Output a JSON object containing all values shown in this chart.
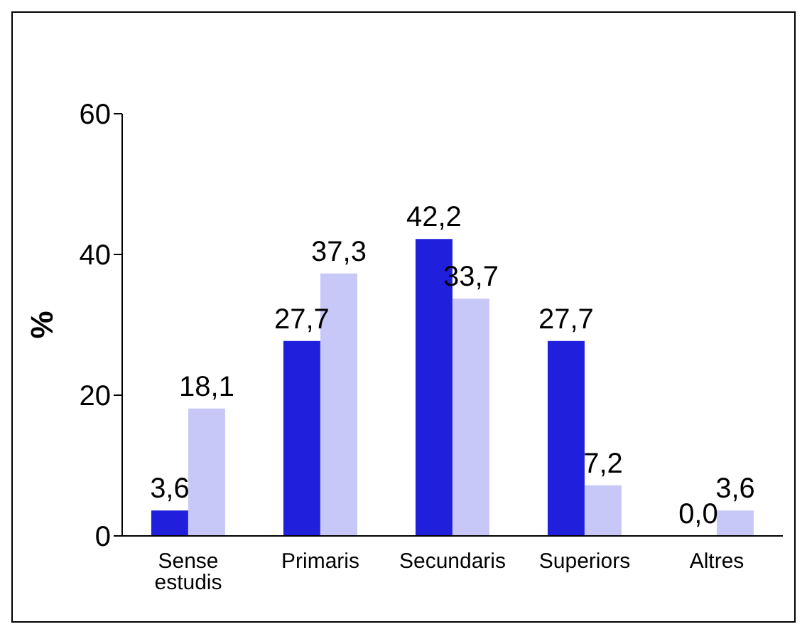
{
  "chart_data": {
    "type": "bar",
    "ylabel": "%",
    "categories": [
      "Sense estudis",
      "Primaris",
      "Secundaris",
      "Superiors",
      "Altres"
    ],
    "series": [
      {
        "color": "#1f1fdc",
        "values": [
          3.6,
          27.7,
          42.2,
          27.7,
          0.0
        ],
        "value_labels": [
          "3,6",
          "27,7",
          "42,2",
          "27,7",
          "0,0"
        ]
      },
      {
        "color": "#c8c8f8",
        "values": [
          18.1,
          37.3,
          33.7,
          7.2,
          3.6
        ],
        "value_labels": [
          "18,1",
          "37,3",
          "33,7",
          "7,2",
          "3,6"
        ]
      }
    ],
    "ylim": [
      0,
      60
    ],
    "yticks": [
      0,
      20,
      40,
      60
    ],
    "grid": false,
    "legend": false
  }
}
